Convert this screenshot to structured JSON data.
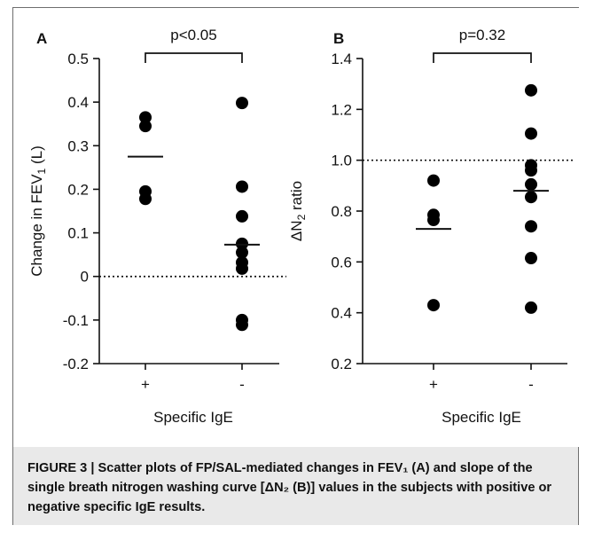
{
  "chart_data": [
    {
      "type": "scatter",
      "panel_label": "A",
      "ylabel_base": "Change in FEV",
      "ylabel_sub": "1",
      "ylabel_suffix": " (L)",
      "xlabel": "Specific IgE",
      "categories": [
        "+",
        "-"
      ],
      "ylim": [
        -0.2,
        0.5
      ],
      "yticks": [
        "-0.2",
        "-0.1",
        "0",
        "0.1",
        "0.2",
        "0.3",
        "0.4",
        "0.5"
      ],
      "reference_line": 0,
      "significance": "p<0.05",
      "series": [
        {
          "category": "+",
          "values": [
            0.365,
            0.345,
            0.195,
            0.178
          ],
          "mean": 0.275
        },
        {
          "category": "-",
          "values": [
            0.398,
            0.206,
            0.138,
            0.075,
            0.055,
            0.032,
            0.018,
            -0.1,
            -0.111
          ],
          "mean": 0.073
        }
      ]
    },
    {
      "type": "scatter",
      "panel_label": "B",
      "ylabel_base": "ΔN",
      "ylabel_sub": "2",
      "ylabel_suffix": " ratio",
      "xlabel": "Specific IgE",
      "categories": [
        "+",
        "-"
      ],
      "ylim": [
        0.2,
        1.4
      ],
      "yticks": [
        "0.2",
        "0.4",
        "0.6",
        "0.8",
        "1.0",
        "1.2",
        "1.4"
      ],
      "reference_line": 1.0,
      "significance": "p=0.32",
      "series": [
        {
          "category": "+",
          "values": [
            0.92,
            0.785,
            0.765,
            0.43
          ],
          "mean": 0.73
        },
        {
          "category": "-",
          "values": [
            1.275,
            1.105,
            0.98,
            0.96,
            0.905,
            0.855,
            0.74,
            0.615,
            0.42
          ],
          "mean": 0.88
        }
      ]
    }
  ],
  "caption": {
    "text": "FIGURE 3 | Scatter plots of FP/SAL-mediated changes in FEV₁ (A) and slope of the single breath nitrogen washing curve [ΔN₂ (B)] values in the subjects with positive or negative specific IgE results."
  },
  "colors": {
    "marker": "#000000",
    "axis": "#111111",
    "caption_bg": "#e9e9e9",
    "frame": "#6e6e6e"
  }
}
